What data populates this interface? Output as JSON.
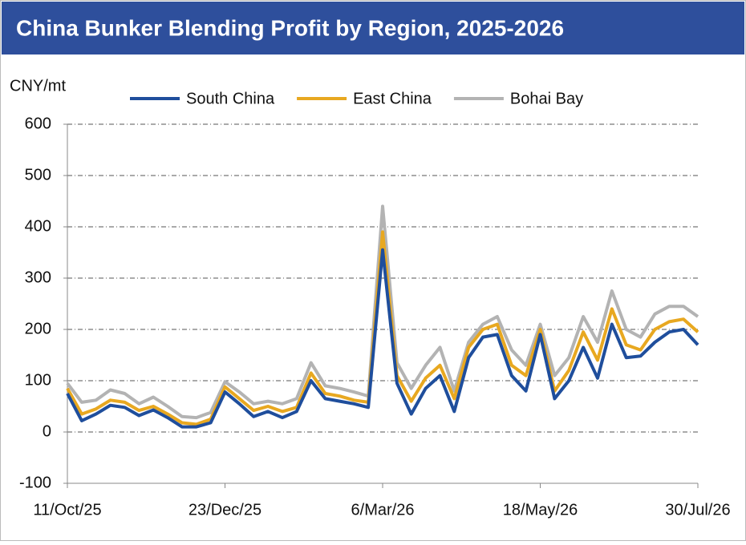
{
  "chart_data": {
    "type": "line",
    "title": "China Bunker Blending Profit by Region, 2025-2026",
    "y_label": "CNY/mt",
    "categories": [
      "11/Oct/25",
      null,
      null,
      null,
      null,
      null,
      null,
      null,
      null,
      null,
      null,
      "23/Dec/25",
      null,
      null,
      null,
      null,
      null,
      null,
      null,
      null,
      null,
      null,
      "6/Mar/26",
      null,
      null,
      null,
      null,
      null,
      null,
      null,
      null,
      null,
      null,
      "18/May/26",
      null,
      null,
      null,
      null,
      null,
      null,
      null,
      null,
      null,
      null,
      "30/Jul/26"
    ],
    "series": [
      {
        "name": "South China",
        "color": "#1f4e9c",
        "values": [
          75,
          22,
          35,
          52,
          48,
          32,
          43,
          28,
          10,
          10,
          18,
          78,
          55,
          30,
          40,
          28,
          40,
          100,
          65,
          60,
          55,
          48,
          355,
          95,
          35,
          85,
          110,
          40,
          145,
          185,
          190,
          110,
          80,
          190,
          65,
          100,
          165,
          105,
          210,
          145,
          148,
          175,
          195,
          200,
          170
        ]
      },
      {
        "name": "East China",
        "color": "#e8a820",
        "values": [
          85,
          35,
          45,
          62,
          58,
          42,
          50,
          35,
          18,
          15,
          25,
          88,
          65,
          42,
          50,
          40,
          48,
          115,
          75,
          70,
          62,
          58,
          390,
          110,
          60,
          105,
          130,
          65,
          165,
          200,
          210,
          130,
          110,
          200,
          80,
          120,
          195,
          140,
          240,
          170,
          160,
          200,
          215,
          220,
          195
        ]
      },
      {
        "name": "Bohai Bay",
        "color": "#b3b3b3",
        "values": [
          95,
          58,
          62,
          82,
          75,
          55,
          68,
          50,
          30,
          28,
          38,
          98,
          78,
          55,
          60,
          55,
          65,
          135,
          90,
          85,
          78,
          70,
          440,
          135,
          85,
          130,
          165,
          80,
          175,
          210,
          225,
          160,
          130,
          210,
          110,
          145,
          225,
          175,
          275,
          200,
          185,
          230,
          245,
          245,
          225
        ]
      }
    ],
    "ylim": [
      -100,
      600
    ],
    "yticks": [
      -100,
      0,
      100,
      200,
      300,
      400,
      500,
      600
    ],
    "grid": true,
    "legend": "top"
  }
}
